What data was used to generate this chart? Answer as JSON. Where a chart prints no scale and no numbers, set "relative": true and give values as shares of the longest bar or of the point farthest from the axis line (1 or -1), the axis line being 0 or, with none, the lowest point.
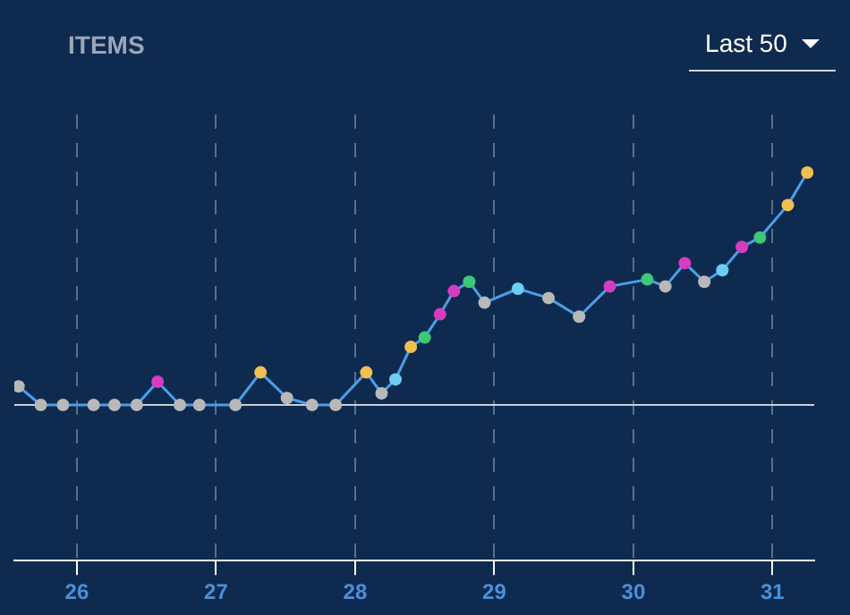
{
  "chart_data": {
    "type": "line",
    "title": "ITEMS",
    "annotations": [
      "Last 50"
    ],
    "relative": true,
    "grid": "x",
    "marker": "circle",
    "line_style": "solid",
    "x": [
      25.58,
      25.74,
      25.9,
      26.12,
      26.27,
      26.43,
      26.58,
      26.74,
      26.88,
      27.14,
      27.32,
      27.51,
      27.69,
      27.86,
      28.08,
      28.19,
      28.29,
      28.4,
      28.5,
      28.61,
      28.71,
      28.82,
      28.93,
      29.17,
      29.39,
      29.61,
      29.83,
      30.1,
      30.23,
      30.37,
      30.51,
      30.64,
      30.78,
      30.91,
      31.11,
      31.25
    ],
    "xlim": [
      25.55,
      31.3
    ],
    "xticks": [
      26,
      27,
      28,
      29,
      30,
      31
    ],
    "series": [
      {
        "color": "#4a9fe8",
        "values": [
          0.08,
          0,
          0,
          0,
          0,
          0,
          0.1,
          0,
          0,
          0,
          0.14,
          0.03,
          0,
          0,
          0.14,
          0.05,
          0.11,
          0.25,
          0.29,
          0.39,
          0.49,
          0.53,
          0.44,
          0.5,
          0.46,
          0.38,
          0.51,
          0.54,
          0.51,
          0.61,
          0.53,
          0.58,
          0.68,
          0.72,
          0.86,
          1
        ],
        "colors": [
          "#b8b8b8",
          "#b8b8b8",
          "#b8b8b8",
          "#b8b8b8",
          "#b8b8b8",
          "#b8b8b8",
          "#d63cc0",
          "#b8b8b8",
          "#b8b8b8",
          "#b8b8b8",
          "#f0c050",
          "#b8b8b8",
          "#b8b8b8",
          "#b8b8b8",
          "#f0c050",
          "#b8b8b8",
          "#6ccdf5",
          "#f0c050",
          "#3cc878",
          "#d63cc0",
          "#d63cc0",
          "#3cc878",
          "#b8b8b8",
          "#6ccdf5",
          "#b8b8b8",
          "#b8b8b8",
          "#d63cc0",
          "#3cc878",
          "#b8b8b8",
          "#d63cc0",
          "#b8b8b8",
          "#6ccdf5",
          "#d63cc0",
          "#3cc878",
          "#f0c050",
          "#f0c050"
        ]
      }
    ]
  }
}
